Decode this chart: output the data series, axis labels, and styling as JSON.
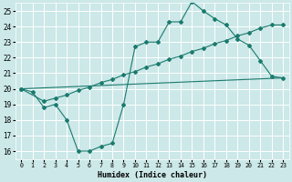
{
  "xlabel": "Humidex (Indice chaleur)",
  "background_color": "#cce8e8",
  "grid_color": "#ffffff",
  "line_color": "#1a7a6e",
  "xlim": [
    -0.5,
    23.5
  ],
  "ylim": [
    15.5,
    25.5
  ],
  "xticks": [
    0,
    1,
    2,
    3,
    4,
    5,
    6,
    7,
    8,
    9,
    10,
    11,
    12,
    13,
    14,
    15,
    16,
    17,
    18,
    19,
    20,
    21,
    22,
    23
  ],
  "yticks": [
    16,
    17,
    18,
    19,
    20,
    21,
    22,
    23,
    24,
    25
  ],
  "line1_x": [
    0,
    1,
    2,
    3,
    4,
    5,
    6,
    7,
    8,
    9,
    10,
    11,
    12,
    13,
    14,
    15,
    16,
    17,
    18,
    19,
    20,
    21,
    22,
    23
  ],
  "line1_y": [
    20.0,
    19.8,
    18.8,
    19.0,
    18.0,
    16.0,
    16.0,
    16.3,
    16.5,
    19.0,
    22.7,
    23.0,
    23.0,
    24.3,
    24.3,
    25.6,
    25.0,
    24.5,
    24.1,
    23.2,
    22.8,
    21.8,
    20.8,
    20.7
  ],
  "line2_x": [
    0,
    2,
    3,
    4,
    5,
    6,
    7,
    8,
    9,
    10,
    11,
    12,
    13,
    14,
    15,
    16,
    17,
    18,
    19,
    20,
    21,
    22,
    23
  ],
  "line2_y": [
    20.0,
    19.2,
    19.4,
    19.6,
    19.9,
    20.1,
    20.4,
    20.6,
    20.9,
    21.1,
    21.4,
    21.6,
    21.9,
    22.1,
    22.4,
    22.6,
    22.9,
    23.1,
    23.4,
    23.6,
    23.9,
    24.1,
    24.1
  ],
  "line3_x": [
    0,
    23
  ],
  "line3_y": [
    20.0,
    20.7
  ]
}
